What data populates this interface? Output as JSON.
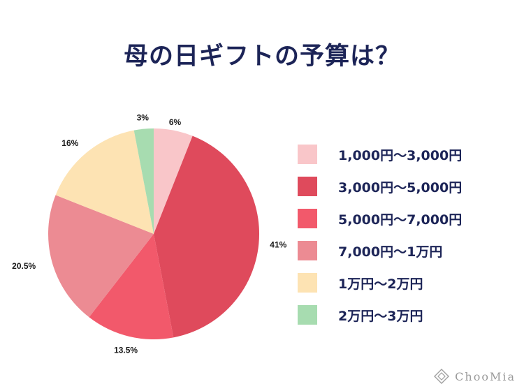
{
  "title": "母の日ギフトの予算は？",
  "chart_data": {
    "type": "pie",
    "categories": [
      "1,000円〜3,000円",
      "3,000円〜5,000円",
      "5,000円〜7,000円",
      "7,000円〜1万円",
      "1万円〜2万円",
      "2万円〜3万円"
    ],
    "values": [
      6,
      41,
      13.5,
      20.5,
      16,
      3
    ],
    "data_labels": [
      "6%",
      "41%",
      "13.5%",
      "20.5%",
      "16%",
      "3%"
    ],
    "colors": [
      "#f9c6c9",
      "#df4a5c",
      "#f2596b",
      "#ec8b93",
      "#fde3b3",
      "#a7dcb0"
    ],
    "legend_position": "right"
  },
  "legend": [
    {
      "label": "1,000円〜3,000円",
      "color": "#f9c6c9"
    },
    {
      "label": "3,000円〜5,000円",
      "color": "#df4a5c"
    },
    {
      "label": "5,000円〜7,000円",
      "color": "#f2596b"
    },
    {
      "label": "7,000円〜1万円",
      "color": "#ec8b93"
    },
    {
      "label": "1万円〜2万円",
      "color": "#fde3b3"
    },
    {
      "label": "2万円〜3万円",
      "color": "#a7dcb0"
    }
  ],
  "watermark": {
    "text": "ChooMia",
    "icon": "diamond-logo-icon"
  }
}
